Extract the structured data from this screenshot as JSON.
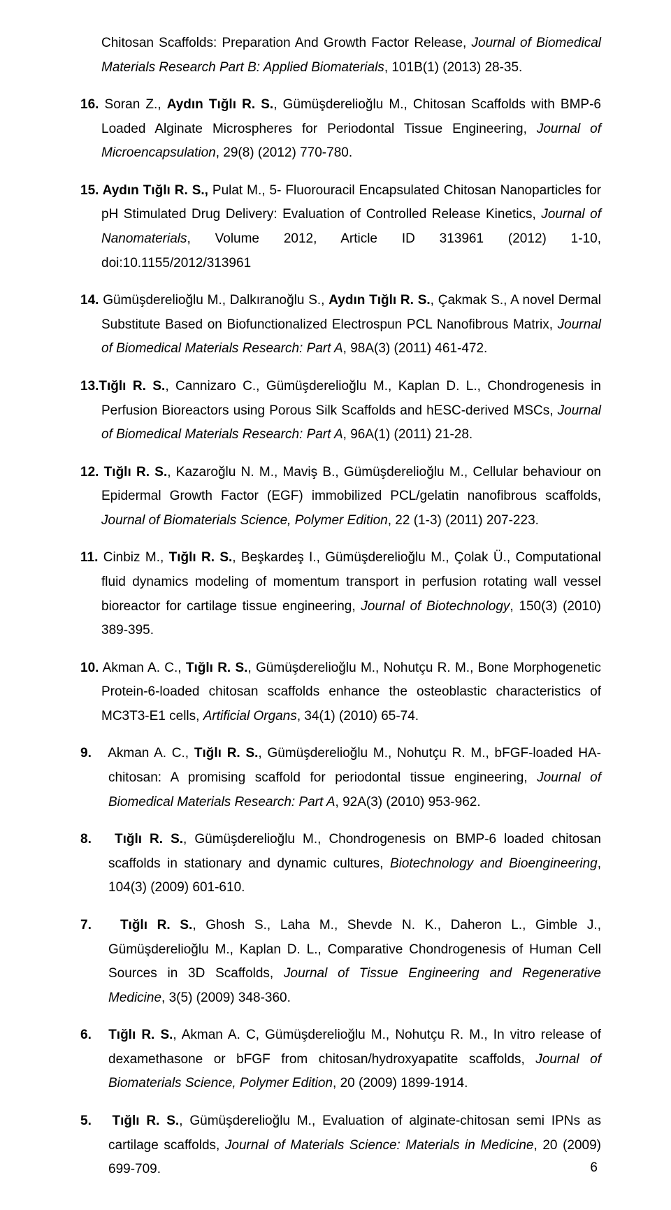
{
  "entries": [
    {
      "cls": "cont",
      "html": "Chitosan Scaffolds: Preparation And Growth Factor Release, <i>Journal of Biomedical Materials Research Part B: Applied Biomaterials</i>, 101B(1) (2013) 28-35."
    },
    {
      "cls": "hang",
      "html": "<b>16.</b> Soran Z., <b>Aydın Tığlı R. S.</b>, Gümüşderelioğlu M., Chitosan Scaffolds with BMP-6 Loaded Alginate Microspheres for Periodontal Tissue Engineering, <i>Journal of Microencapsulation</i>, 29(8) (2012) 770-780."
    },
    {
      "cls": "hang",
      "html": "<b>15. Aydın Tığlı R. S.,</b> Pulat M., 5- Fluorouracil Encapsulated Chitosan Nanoparticles for pH Stimulated Drug Delivery: Evaluation of Controlled Release Kinetics, <i>Journal of Nanomaterials</i>, Volume 2012, Article ID 313961 (2012) 1-10, doi:10.1155/2012/313961"
    },
    {
      "cls": "hang",
      "html": "<b>14.</b> Gümüşderelioğlu M., Dalkıranoğlu S., <b>Aydın Tığlı R. S.</b>, Çakmak S., A novel Dermal Substitute Based on Biofunctionalized Electrospun PCL Nanofibrous Matrix, <i>Journal of Biomedical Materials Research: Part A</i>, 98A(3) (2011) 461-472."
    },
    {
      "cls": "hang",
      "html": "<b>13.Tığlı R. S.</b>, Cannizaro C., Gümüşderelioğlu M., Kaplan D. L., Chondrogenesis in Perfusion Bioreactors using Porous Silk Scaffolds and hESC-derived MSCs, <i>Journal of Biomedical Materials Research: Part A</i>, 96A(1) (2011) 21-28."
    },
    {
      "cls": "hang",
      "html": "<b>12. Tığlı R. S.</b>, Kazaroğlu N. M., Maviş B., Gümüşderelioğlu M., Cellular behaviour on Epidermal Growth Factor (EGF) immobilized PCL/gelatin nanofibrous scaffolds, <i>Journal of Biomaterials Science, Polymer Edition</i>, 22 (1-3) (2011) 207-223."
    },
    {
      "cls": "hang",
      "html": "<b>11.</b> Cinbiz M., <b>Tığlı R. S.</b>, Beşkardeş I., Gümüşderelioğlu M., Çolak Ü., Computational fluid dynamics modeling of momentum transport in perfusion rotating wall vessel bioreactor for cartilage tissue engineering, <i>Journal of Biotechnology</i>, 150(3) (2010) 389-395."
    },
    {
      "cls": "hang",
      "html": "<b>10.</b> Akman A. C., <b>Tığlı R. S.</b>, Gümüşderelioğlu M., Nohutçu R. M., Bone Morphogenetic Protein-6-loaded chitosan scaffolds enhance the osteoblastic characteristics of MC3T3-E1 cells, <i>Artificial Organs</i>, 34(1) (2010) 65-74."
    },
    {
      "cls": "hang-wide",
      "html": "<b>9.</b>&nbsp;&nbsp;&nbsp;Akman A. C., <b>Tığlı R. S.</b>, Gümüşderelioğlu M., Nohutçu R. M., bFGF-loaded HA-chitosan: A promising scaffold for periodontal tissue engineering, <i>Journal of Biomedical Materials Research: Part A</i>, 92A(3) (2010) 953-962."
    },
    {
      "cls": "hang-wide",
      "html": "<b>8.</b>&nbsp;&nbsp;&nbsp;<b>Tığlı R. S.</b>, Gümüşderelioğlu M., Chondrogenesis on BMP-6 loaded chitosan scaffolds in stationary and dynamic cultures, <i>Biotechnology and Bioengineering</i>, 104(3) (2009) 601-610."
    },
    {
      "cls": "hang-wide",
      "html": "<b>7.</b>&nbsp;&nbsp;&nbsp;<b>Tığlı R. S.</b>, Ghosh S., Laha M., Shevde N. K., Daheron L., Gimble J., Gümüşderelioğlu M., Kaplan D. L., Comparative Chondrogenesis of Human Cell Sources in 3D Scaffolds, <i>Journal of Tissue Engineering and Regenerative Medicine</i>, 3(5) (2009) 348-360."
    },
    {
      "cls": "hang-wide",
      "html": "<b>6.</b>&nbsp;&nbsp;&nbsp;<b>Tığlı R. S.</b>, Akman A. C, Gümüşderelioğlu M., Nohutçu R. M., In vitro release of dexamethasone or bFGF from chitosan/hydroxyapatite scaffolds, <i>Journal of Biomaterials Science, Polymer Edition</i>, 20 (2009) 1899-1914."
    },
    {
      "cls": "hang-wide",
      "html": "<b>5.</b>&nbsp;&nbsp;&nbsp;<b>Tığlı R. S.</b>, Gümüşderelioğlu M., Evaluation of alginate-chitosan semi IPNs as cartilage scaffolds, <i>Journal of Materials Science: Materials in Medicine</i>, 20 (2009) 699-709."
    }
  ],
  "pageNumber": "6"
}
